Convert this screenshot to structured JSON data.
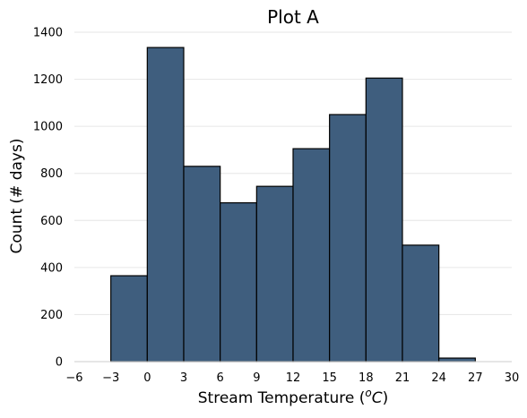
{
  "chart_data": {
    "type": "bar",
    "title": "Plot A",
    "xlabel_prefix": "Stream Temperature (",
    "xlabel_unit": "o",
    "xlabel_unit_letter": "C",
    "xlabel_suffix": ")",
    "ylabel": "Count (# days)",
    "bin_edges": [
      -3,
      0,
      3,
      6,
      9,
      12,
      15,
      18,
      21,
      24,
      27
    ],
    "values": [
      365,
      1335,
      830,
      675,
      745,
      905,
      1050,
      1205,
      495,
      15
    ],
    "xlim": [
      -6,
      30
    ],
    "ylim": [
      0,
      1400
    ],
    "x_ticks": [
      -6,
      -3,
      0,
      3,
      6,
      9,
      12,
      15,
      18,
      21,
      24,
      27,
      30
    ],
    "x_tick_labels": [
      "−6",
      "−3",
      "0",
      "3",
      "6",
      "9",
      "12",
      "15",
      "18",
      "21",
      "24",
      "27",
      "30"
    ],
    "y_ticks": [
      0,
      200,
      400,
      600,
      800,
      1000,
      1200,
      1400
    ],
    "y_tick_labels": [
      "0",
      "200",
      "400",
      "600",
      "800",
      "1000",
      "1200",
      "1400"
    ],
    "grid": "horizontal",
    "bar_color": "#3f5e7e",
    "edge_color": "#000000",
    "grid_color": "#e6e6e6"
  }
}
